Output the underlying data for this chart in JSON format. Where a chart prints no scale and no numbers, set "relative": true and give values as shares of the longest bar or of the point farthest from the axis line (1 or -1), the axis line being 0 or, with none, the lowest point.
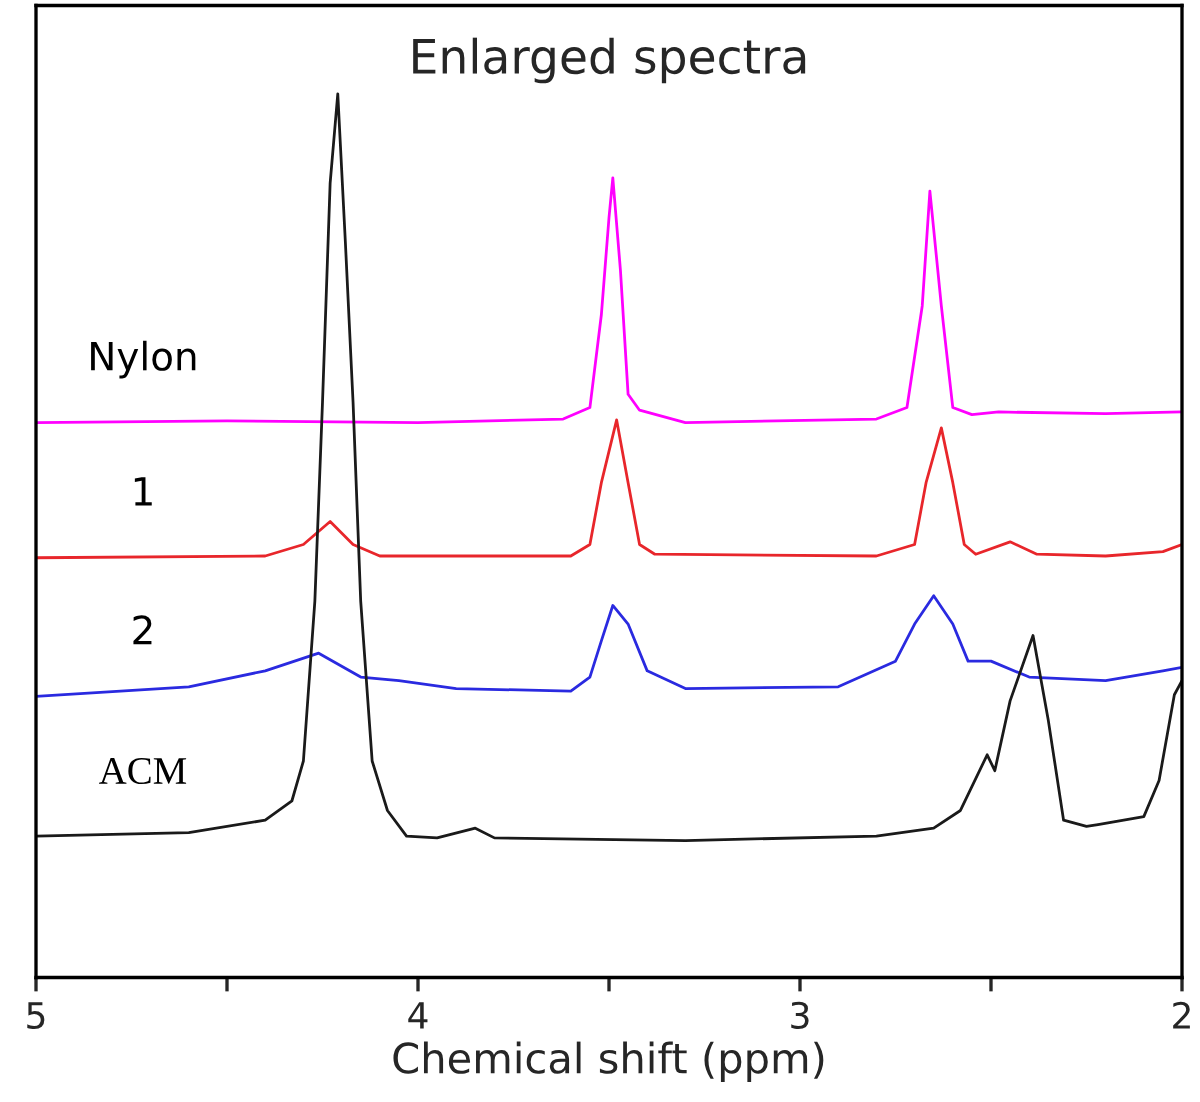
{
  "chart_data": {
    "type": "line",
    "title": "Enlarged spectra",
    "xlabel": "Chemical shift (ppm)",
    "relative": true,
    "xlim": [
      5,
      2
    ],
    "xticks": [
      5,
      {
        "value": 4.5,
        "label": null
      },
      4,
      {
        "value": 3.5,
        "label": null
      },
      3,
      {
        "value": 2.5,
        "label": null
      },
      2
    ],
    "grid": false,
    "legend": false,
    "marker": "none",
    "line_style": "solid",
    "series": [
      {
        "name": "Nylon",
        "color": "#ff00ff",
        "x": [
          5,
          4.5,
          4.0,
          3.62,
          3.55,
          3.52,
          3.5,
          3.49,
          3.47,
          3.45,
          3.42,
          3.3,
          2.8,
          2.72,
          2.68,
          2.66,
          2.63,
          2.6,
          2.55,
          2.48,
          2.2,
          2.0
        ],
        "values": [
          0.628,
          0.63,
          0.628,
          0.632,
          0.645,
          0.75,
          0.86,
          0.905,
          0.8,
          0.66,
          0.642,
          0.628,
          0.632,
          0.645,
          0.76,
          0.89,
          0.76,
          0.645,
          0.637,
          0.64,
          0.638,
          0.64
        ]
      },
      {
        "name": "1",
        "color": "#e8262b",
        "x": [
          5,
          4.4,
          4.3,
          4.23,
          4.17,
          4.1,
          3.6,
          3.55,
          3.52,
          3.48,
          3.45,
          3.42,
          3.38,
          2.8,
          2.7,
          2.67,
          2.63,
          2.6,
          2.57,
          2.54,
          2.45,
          2.38,
          2.2,
          2.05,
          2.0
        ],
        "values": [
          0.475,
          0.477,
          0.49,
          0.516,
          0.49,
          0.477,
          0.477,
          0.49,
          0.56,
          0.631,
          0.56,
          0.49,
          0.479,
          0.477,
          0.49,
          0.56,
          0.622,
          0.56,
          0.49,
          0.479,
          0.493,
          0.479,
          0.477,
          0.482,
          0.49
        ]
      },
      {
        "name": "2",
        "color": "#2a2ae0",
        "x": [
          5,
          4.6,
          4.4,
          4.26,
          4.15,
          4.05,
          3.9,
          3.6,
          3.55,
          3.52,
          3.49,
          3.45,
          3.4,
          3.3,
          2.9,
          2.75,
          2.7,
          2.65,
          2.6,
          2.56,
          2.5,
          2.4,
          2.2,
          2.05,
          2.0
        ],
        "values": [
          0.318,
          0.329,
          0.347,
          0.367,
          0.34,
          0.336,
          0.327,
          0.324,
          0.34,
          0.381,
          0.421,
          0.4,
          0.347,
          0.327,
          0.329,
          0.358,
          0.4,
          0.432,
          0.4,
          0.358,
          0.358,
          0.34,
          0.336,
          0.347,
          0.351
        ]
      },
      {
        "name": "ACM",
        "color": "#1a1a1a",
        "x": [
          5,
          4.6,
          4.4,
          4.33,
          4.3,
          4.27,
          4.25,
          4.23,
          4.21,
          4.19,
          4.17,
          4.15,
          4.12,
          4.08,
          4.03,
          3.95,
          3.85,
          3.8,
          3.3,
          2.8,
          2.65,
          2.58,
          2.51,
          2.49,
          2.45,
          2.39,
          2.35,
          2.31,
          2.25,
          2.22,
          2.1,
          2.06,
          2.02,
          2.0
        ],
        "values": [
          0.16,
          0.164,
          0.178,
          0.2,
          0.245,
          0.426,
          0.651,
          0.899,
          1.0,
          0.831,
          0.651,
          0.426,
          0.245,
          0.189,
          0.16,
          0.158,
          0.169,
          0.158,
          0.155,
          0.16,
          0.169,
          0.189,
          0.252,
          0.234,
          0.313,
          0.387,
          0.291,
          0.178,
          0.171,
          0.173,
          0.182,
          0.223,
          0.32,
          0.336
        ]
      }
    ]
  }
}
